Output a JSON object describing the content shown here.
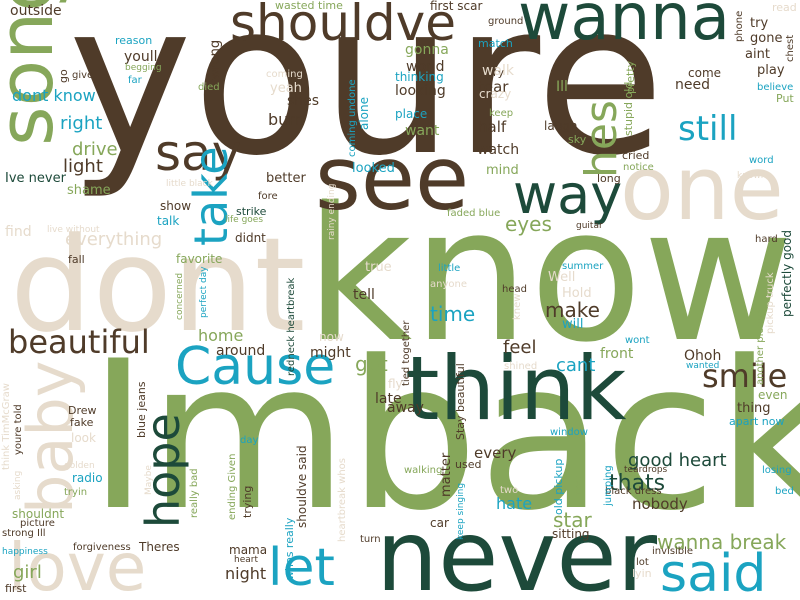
{
  "palette": {
    "brown": "#4f3b29",
    "green": "#86a75a",
    "teal": "#1d4a3a",
    "cyan": "#1ba3c1",
    "beige": "#e6dbcc"
  },
  "words": [
    {
      "text": "youre",
      "color": "brown"
    },
    {
      "text": "know",
      "color": "green"
    },
    {
      "text": "Imback",
      "color": "green"
    },
    {
      "text": "dont",
      "color": "beige"
    },
    {
      "text": "never",
      "color": "teal"
    },
    {
      "text": "think",
      "color": "teal"
    },
    {
      "text": "song",
      "color": "green"
    },
    {
      "text": "see",
      "color": "brown"
    },
    {
      "text": "one",
      "color": "beige"
    },
    {
      "text": "way",
      "color": "teal"
    },
    {
      "text": "wanna",
      "color": "teal"
    },
    {
      "text": "shouldve",
      "color": "brown"
    },
    {
      "text": "say",
      "color": "brown"
    },
    {
      "text": "love",
      "color": "beige"
    },
    {
      "text": "baby",
      "color": "beige"
    },
    {
      "text": "Cause",
      "color": "cyan"
    },
    {
      "text": "take",
      "color": "cyan"
    },
    {
      "text": "said",
      "color": "cyan"
    },
    {
      "text": "let",
      "color": "cyan"
    },
    {
      "text": "hope",
      "color": "teal"
    },
    {
      "text": "hes",
      "color": "green"
    },
    {
      "text": "smile",
      "color": "brown"
    },
    {
      "text": "beautiful",
      "color": "brown"
    },
    {
      "text": "still",
      "color": "cyan"
    },
    {
      "text": "everything",
      "color": "beige"
    },
    {
      "text": "wanna break",
      "color": "green"
    },
    {
      "text": "good heart",
      "color": "teal"
    },
    {
      "text": "time",
      "color": "cyan"
    },
    {
      "text": "make",
      "color": "brown"
    },
    {
      "text": "eyes",
      "color": "green"
    },
    {
      "text": "thats",
      "color": "teal"
    },
    {
      "text": "star",
      "color": "green"
    },
    {
      "text": "hate",
      "color": "cyan"
    },
    {
      "text": "got",
      "color": "green"
    },
    {
      "text": "cant",
      "color": "cyan"
    },
    {
      "text": "feel",
      "color": "brown"
    },
    {
      "text": "drive",
      "color": "green"
    },
    {
      "text": "right",
      "color": "cyan"
    },
    {
      "text": "dont know",
      "color": "cyan"
    },
    {
      "text": "light",
      "color": "brown"
    },
    {
      "text": "girl",
      "color": "green"
    },
    {
      "text": "night",
      "color": "brown"
    },
    {
      "text": "home",
      "color": "green"
    },
    {
      "text": "burn",
      "color": "brown"
    },
    {
      "text": "want",
      "color": "green"
    },
    {
      "text": "half",
      "color": "brown"
    },
    {
      "text": "watch",
      "color": "brown"
    },
    {
      "text": "tear",
      "color": "brown"
    },
    {
      "text": "need",
      "color": "brown"
    },
    {
      "text": "Ohoh",
      "color": "brown"
    },
    {
      "text": "front",
      "color": "green"
    },
    {
      "text": "nobody",
      "color": "brown"
    },
    {
      "text": "every",
      "color": "brown"
    },
    {
      "text": "matter",
      "color": "brown"
    },
    {
      "text": "tell",
      "color": "brown"
    },
    {
      "text": "away",
      "color": "brown"
    },
    {
      "text": "late",
      "color": "brown"
    },
    {
      "text": "might",
      "color": "brown"
    },
    {
      "text": "around",
      "color": "brown"
    },
    {
      "text": "gonna",
      "color": "green"
    },
    {
      "text": "world",
      "color": "brown"
    },
    {
      "text": "looking",
      "color": "brown"
    },
    {
      "text": "Ill",
      "color": "green"
    },
    {
      "text": "shes",
      "color": "brown"
    },
    {
      "text": "yeah",
      "color": "beige"
    },
    {
      "text": "wrong",
      "color": "brown"
    },
    {
      "text": "youll",
      "color": "brown"
    },
    {
      "text": "outside",
      "color": "brown"
    },
    {
      "text": "Ive never",
      "color": "teal"
    },
    {
      "text": "shame",
      "color": "green"
    },
    {
      "text": "find",
      "color": "beige"
    },
    {
      "text": "better",
      "color": "brown"
    },
    {
      "text": "show",
      "color": "brown"
    },
    {
      "text": "talk",
      "color": "cyan"
    },
    {
      "text": "didnt",
      "color": "brown"
    },
    {
      "text": "favorite",
      "color": "green"
    },
    {
      "text": "fall",
      "color": "brown"
    },
    {
      "text": "looked",
      "color": "cyan"
    },
    {
      "text": "mind",
      "color": "green"
    },
    {
      "text": "true",
      "color": "beige"
    },
    {
      "text": "Well",
      "color": "beige"
    },
    {
      "text": "Hold",
      "color": "beige"
    },
    {
      "text": "will",
      "color": "cyan"
    },
    {
      "text": "thing",
      "color": "brown"
    },
    {
      "text": "even",
      "color": "green"
    },
    {
      "text": "apart now",
      "color": "cyan"
    },
    {
      "text": "first scar",
      "color": "brown"
    },
    {
      "text": "wasted time",
      "color": "green"
    },
    {
      "text": "match",
      "color": "cyan"
    },
    {
      "text": "ground",
      "color": "brown"
    },
    {
      "text": "come",
      "color": "brown"
    },
    {
      "text": "play",
      "color": "brown"
    },
    {
      "text": "aint",
      "color": "brown"
    },
    {
      "text": "gone",
      "color": "brown"
    },
    {
      "text": "try",
      "color": "brown"
    },
    {
      "text": "Put",
      "color": "green"
    },
    {
      "text": "believe",
      "color": "cyan"
    },
    {
      "text": "laugh",
      "color": "brown"
    },
    {
      "text": "cried",
      "color": "brown"
    },
    {
      "text": "notice",
      "color": "green"
    },
    {
      "text": "long",
      "color": "brown"
    },
    {
      "text": "sky",
      "color": "green"
    },
    {
      "text": "keep",
      "color": "green"
    },
    {
      "text": "place",
      "color": "cyan"
    },
    {
      "text": "thinking",
      "color": "cyan"
    },
    {
      "text": "cry",
      "color": "brown"
    },
    {
      "text": "walk",
      "color": "beige"
    },
    {
      "text": "crazy",
      "color": "beige"
    },
    {
      "text": "reason",
      "color": "cyan"
    },
    {
      "text": "begging",
      "color": "green"
    },
    {
      "text": "far",
      "color": "cyan"
    },
    {
      "text": "give",
      "color": "brown"
    },
    {
      "text": "go",
      "color": "brown"
    },
    {
      "text": "died",
      "color": "green"
    },
    {
      "text": "coming",
      "color": "beige"
    },
    {
      "text": "word",
      "color": "cyan"
    },
    {
      "text": "known",
      "color": "beige"
    },
    {
      "text": "hard",
      "color": "brown"
    },
    {
      "text": "little",
      "color": "cyan"
    },
    {
      "text": "anyone",
      "color": "beige"
    },
    {
      "text": "head",
      "color": "brown"
    },
    {
      "text": "summer",
      "color": "cyan"
    },
    {
      "text": "guitar",
      "color": "brown"
    },
    {
      "text": "faded blue",
      "color": "green"
    },
    {
      "text": "strike",
      "color": "teal"
    },
    {
      "text": "life goes",
      "color": "green"
    },
    {
      "text": "fore",
      "color": "brown"
    },
    {
      "text": "little black",
      "color": "beige"
    },
    {
      "text": "live without",
      "color": "beige"
    },
    {
      "text": "concerned",
      "color": "green"
    },
    {
      "text": "perfect day",
      "color": "cyan"
    },
    {
      "text": "now",
      "color": "beige"
    },
    {
      "text": "fly",
      "color": "beige"
    },
    {
      "text": "shined",
      "color": "beige"
    },
    {
      "text": "wont",
      "color": "cyan"
    },
    {
      "text": "wanted",
      "color": "cyan"
    },
    {
      "text": "window",
      "color": "cyan"
    },
    {
      "text": "teardrops",
      "color": "brown"
    },
    {
      "text": "black dress",
      "color": "brown"
    },
    {
      "text": "used",
      "color": "brown"
    },
    {
      "text": "two",
      "color": "beige"
    },
    {
      "text": "sitting",
      "color": "brown"
    },
    {
      "text": "invisible",
      "color": "brown"
    },
    {
      "text": "lot",
      "color": "brown"
    },
    {
      "text": "lyin",
      "color": "beige"
    },
    {
      "text": "losing",
      "color": "cyan"
    },
    {
      "text": "bed",
      "color": "cyan"
    },
    {
      "text": "walking",
      "color": "green"
    },
    {
      "text": "car",
      "color": "brown"
    },
    {
      "text": "turn",
      "color": "brown"
    },
    {
      "text": "mama",
      "color": "brown"
    },
    {
      "text": "heart",
      "color": "brown"
    },
    {
      "text": "Theres",
      "color": "brown"
    },
    {
      "text": "forgiveness",
      "color": "brown"
    },
    {
      "text": "happiness",
      "color": "cyan"
    },
    {
      "text": "strong Ill",
      "color": "brown"
    },
    {
      "text": "picture",
      "color": "brown"
    },
    {
      "text": "first",
      "color": "brown"
    },
    {
      "text": "shouldnt",
      "color": "green"
    },
    {
      "text": "tryin",
      "color": "green"
    },
    {
      "text": "golden",
      "color": "beige"
    },
    {
      "text": "radio",
      "color": "cyan"
    },
    {
      "text": "look",
      "color": "beige"
    },
    {
      "text": "fake",
      "color": "brown"
    },
    {
      "text": "Drew",
      "color": "brown"
    },
    {
      "text": "day",
      "color": "cyan"
    },
    {
      "text": "trying",
      "color": "brown"
    },
    {
      "text": "blue jeans",
      "color": "brown"
    },
    {
      "text": "Maybe",
      "color": "beige"
    },
    {
      "text": "pretty",
      "color": "green"
    },
    {
      "text": "read",
      "color": "beige"
    },
    {
      "text": "phone",
      "color": "brown"
    },
    {
      "text": "chest",
      "color": "brown"
    },
    {
      "text": "think TimMcGraw",
      "color": "beige"
    },
    {
      "text": "youre told",
      "color": "brown"
    },
    {
      "text": "asking",
      "color": "beige"
    },
    {
      "text": "really bad",
      "color": "green"
    },
    {
      "text": "ending Given",
      "color": "green"
    },
    {
      "text": "whos really",
      "color": "cyan"
    },
    {
      "text": "shouldve said",
      "color": "brown"
    },
    {
      "text": "heartbreak whos",
      "color": "beige"
    },
    {
      "text": "redneck heartbreak",
      "color": "teal"
    },
    {
      "text": "tied together",
      "color": "brown"
    },
    {
      "text": "Stay beautiful",
      "color": "brown"
    },
    {
      "text": "keep singing",
      "color": "cyan"
    },
    {
      "text": "old pickup",
      "color": "cyan"
    },
    {
      "text": "feet",
      "color": "green"
    },
    {
      "text": "knew",
      "color": "beige"
    },
    {
      "text": "jumping",
      "color": "cyan"
    },
    {
      "text": "pickup truck",
      "color": "beige"
    },
    {
      "text": "another picture",
      "color": "green"
    },
    {
      "text": "perfectly good",
      "color": "teal"
    },
    {
      "text": "stupid old",
      "color": "green"
    },
    {
      "text": "coming undone",
      "color": "cyan"
    },
    {
      "text": "alone",
      "color": "cyan"
    },
    {
      "text": "rainy ending",
      "color": "beige"
    }
  ]
}
